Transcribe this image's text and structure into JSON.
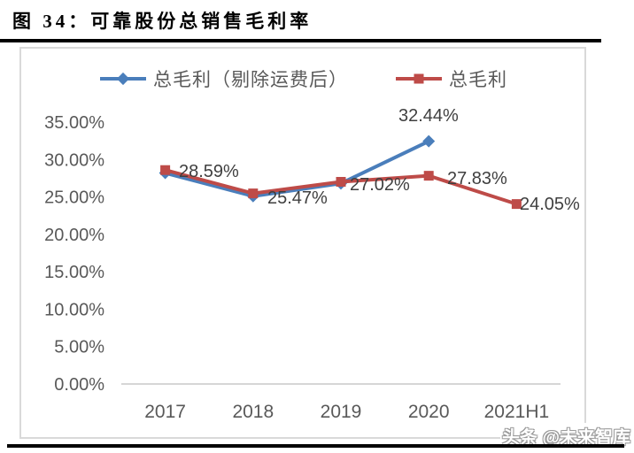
{
  "header": {
    "title": "图 34：可靠股份总销售毛利率"
  },
  "watermark": {
    "text": "头条 @未来智库"
  },
  "chart_data": {
    "type": "line",
    "title": "可靠股份总销售毛利率",
    "categories": [
      "2017",
      "2018",
      "2019",
      "2020",
      "2021H1"
    ],
    "series": [
      {
        "name": "总毛利（剔除运费后）",
        "color": "#4A7EBB",
        "marker": "diamond",
        "values": [
          28.2,
          25.1,
          26.8,
          32.44,
          null
        ],
        "data_labels": [
          null,
          null,
          null,
          "32.44%",
          null
        ]
      },
      {
        "name": "总毛利",
        "color": "#BE4B48",
        "marker": "square",
        "values": [
          28.59,
          25.47,
          27.02,
          27.83,
          24.05
        ],
        "data_labels": [
          "28.59%",
          "25.47%",
          "27.02%",
          "27.83%",
          "24.05%"
        ]
      }
    ],
    "ylim": [
      0,
      35
    ],
    "ytick_step": 5,
    "ytick_suffix": "%",
    "grid": false,
    "legend_position": "top",
    "axis_color": "#D6D6D6",
    "tick_color": "#595959",
    "data_label_color": "#3F3F3F"
  }
}
